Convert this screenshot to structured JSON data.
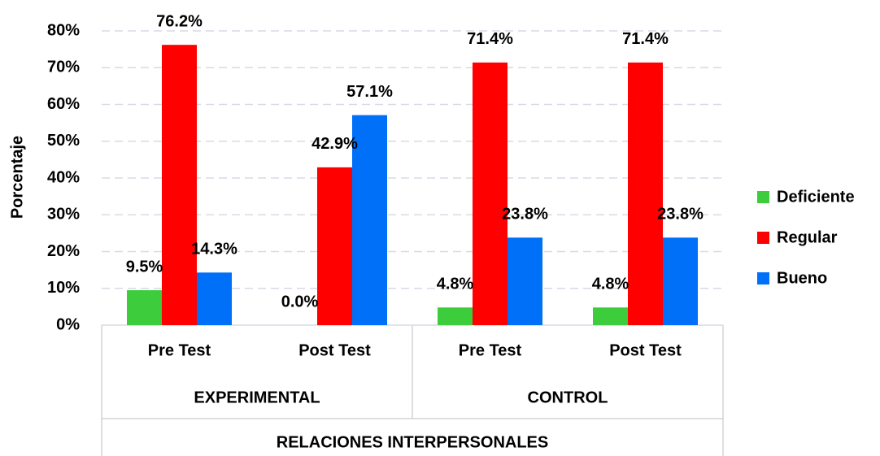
{
  "chart_data": {
    "type": "bar",
    "ylabel": "Porcentaje",
    "categories": [
      "Pre Test",
      "Post Test",
      "Pre Test",
      "Post Test"
    ],
    "groups": [
      "EXPERIMENTAL",
      "CONTROL"
    ],
    "outer_label": "RELACIONES INTERPERSONALES",
    "series": [
      {
        "name": "Deficiente",
        "color": "#3ccc3c",
        "values": [
          9.5,
          0,
          4.8,
          4.8
        ],
        "value_labels": [
          "9.5%",
          "0.0%",
          "4.8%",
          "4.8%"
        ]
      },
      {
        "name": "Regular",
        "color": "#ff0000",
        "values": [
          76.2,
          42.9,
          71.4,
          71.4
        ],
        "value_labels": [
          "76.2%",
          "42.9%",
          "71.4%",
          "71.4%"
        ]
      },
      {
        "name": "Bueno",
        "color": "#0070f8",
        "values": [
          14.3,
          57.1,
          23.8,
          23.8
        ],
        "value_labels": [
          "14.3%",
          "57.1%",
          "23.8%",
          "23.8%"
        ]
      }
    ],
    "ylim": [
      0,
      80
    ],
    "yticks": [
      {
        "value": 0,
        "label": "0%"
      },
      {
        "value": 10,
        "label": "10%"
      },
      {
        "value": 20,
        "label": "20%"
      },
      {
        "value": 30,
        "label": "30%"
      },
      {
        "value": 40,
        "label": "40%"
      },
      {
        "value": 50,
        "label": "50%"
      },
      {
        "value": 60,
        "label": "60%"
      },
      {
        "value": 70,
        "label": "70%"
      },
      {
        "value": 80,
        "label": "80%"
      }
    ],
    "grid": true,
    "legend": "right"
  }
}
